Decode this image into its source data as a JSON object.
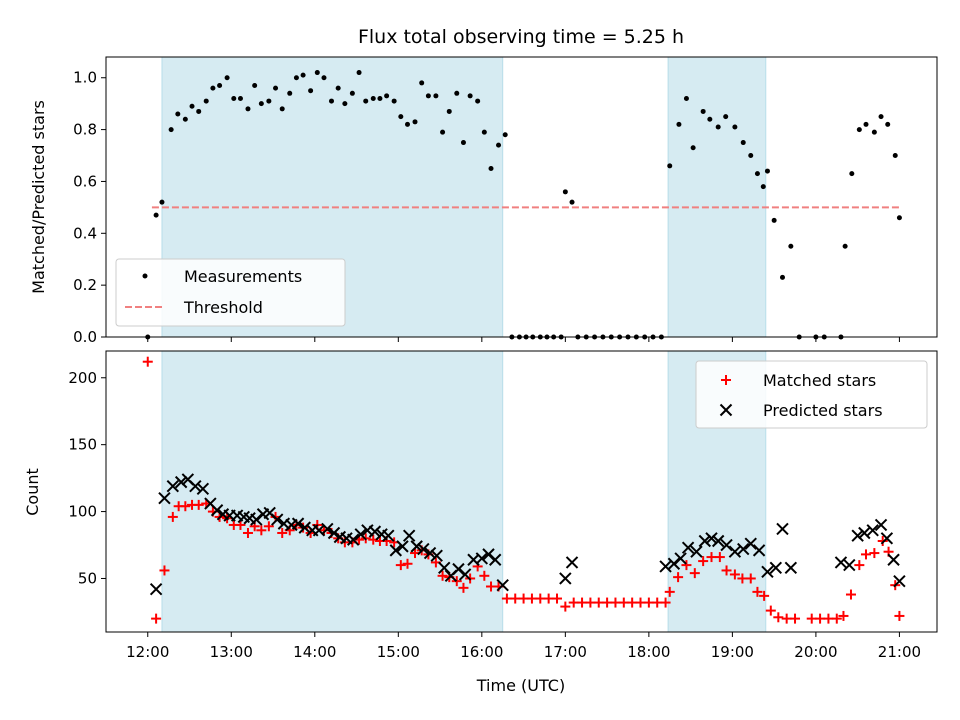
{
  "chart_data": {
    "title": "Flux total observing time = 5.25 h",
    "xlabel": "Time (UTC)",
    "x_ticks": [
      "12:00",
      "13:00",
      "14:00",
      "15:00",
      "16:00",
      "17:00",
      "18:00",
      "19:00",
      "20:00",
      "21:00"
    ],
    "x_range_hours": [
      11.5,
      21.45
    ],
    "shaded_intervals_hours": [
      [
        12.17,
        16.25
      ],
      [
        18.23,
        19.4
      ]
    ],
    "top": {
      "type": "scatter",
      "ylabel": "Matched/Predicted stars",
      "ylim": [
        0,
        1.08
      ],
      "y_ticks": [
        "0.0",
        "0.2",
        "0.4",
        "0.6",
        "0.8",
        "1.0"
      ],
      "legend_position": "lower-left",
      "threshold": {
        "name": "Threshold",
        "value": 0.5,
        "x_range_hours": [
          12.05,
          21.0
        ],
        "color": "#f08080"
      },
      "measurements": {
        "name": "Measurements",
        "color": "#000000",
        "points": [
          [
            12.0,
            0.0
          ],
          [
            12.1,
            0.47
          ],
          [
            12.17,
            0.52
          ],
          [
            12.28,
            0.8
          ],
          [
            12.36,
            0.86
          ],
          [
            12.45,
            0.84
          ],
          [
            12.53,
            0.89
          ],
          [
            12.61,
            0.87
          ],
          [
            12.7,
            0.91
          ],
          [
            12.78,
            0.96
          ],
          [
            12.86,
            0.97
          ],
          [
            12.95,
            1.0
          ],
          [
            13.03,
            0.92
          ],
          [
            13.11,
            0.92
          ],
          [
            13.2,
            0.88
          ],
          [
            13.28,
            0.97
          ],
          [
            13.36,
            0.9
          ],
          [
            13.45,
            0.91
          ],
          [
            13.53,
            0.96
          ],
          [
            13.61,
            0.88
          ],
          [
            13.7,
            0.94
          ],
          [
            13.78,
            1.0
          ],
          [
            13.86,
            1.01
          ],
          [
            13.95,
            0.95
          ],
          [
            14.03,
            1.02
          ],
          [
            14.11,
            1.0
          ],
          [
            14.2,
            0.91
          ],
          [
            14.28,
            0.96
          ],
          [
            14.36,
            0.9
          ],
          [
            14.45,
            0.94
          ],
          [
            14.53,
            1.02
          ],
          [
            14.61,
            0.91
          ],
          [
            14.7,
            0.92
          ],
          [
            14.78,
            0.92
          ],
          [
            14.86,
            0.93
          ],
          [
            14.95,
            0.91
          ],
          [
            15.03,
            0.85
          ],
          [
            15.11,
            0.82
          ],
          [
            15.2,
            0.83
          ],
          [
            15.28,
            0.98
          ],
          [
            15.36,
            0.93
          ],
          [
            15.45,
            0.93
          ],
          [
            15.53,
            0.79
          ],
          [
            15.61,
            0.87
          ],
          [
            15.7,
            0.94
          ],
          [
            15.78,
            0.75
          ],
          [
            15.86,
            0.93
          ],
          [
            15.95,
            0.91
          ],
          [
            16.03,
            0.79
          ],
          [
            16.11,
            0.65
          ],
          [
            16.2,
            0.74
          ],
          [
            16.28,
            0.78
          ],
          [
            16.36,
            0.0
          ],
          [
            16.45,
            0.0
          ],
          [
            16.53,
            0.0
          ],
          [
            16.61,
            0.0
          ],
          [
            16.7,
            0.0
          ],
          [
            16.78,
            0.0
          ],
          [
            16.86,
            0.0
          ],
          [
            16.95,
            0.0
          ],
          [
            17.0,
            0.56
          ],
          [
            17.08,
            0.52
          ],
          [
            17.15,
            0.0
          ],
          [
            17.25,
            0.0
          ],
          [
            17.35,
            0.0
          ],
          [
            17.45,
            0.0
          ],
          [
            17.55,
            0.0
          ],
          [
            17.65,
            0.0
          ],
          [
            17.75,
            0.0
          ],
          [
            17.85,
            0.0
          ],
          [
            17.95,
            0.0
          ],
          [
            18.05,
            0.0
          ],
          [
            18.15,
            0.0
          ],
          [
            18.25,
            0.66
          ],
          [
            18.36,
            0.82
          ],
          [
            18.45,
            0.92
          ],
          [
            18.53,
            0.73
          ],
          [
            18.65,
            0.87
          ],
          [
            18.73,
            0.84
          ],
          [
            18.83,
            0.81
          ],
          [
            18.92,
            0.85
          ],
          [
            19.03,
            0.81
          ],
          [
            19.13,
            0.75
          ],
          [
            19.22,
            0.7
          ],
          [
            19.3,
            0.63
          ],
          [
            19.37,
            0.58
          ],
          [
            19.42,
            0.64
          ],
          [
            19.5,
            0.45
          ],
          [
            19.6,
            0.23
          ],
          [
            19.7,
            0.35
          ],
          [
            19.8,
            0.0
          ],
          [
            20.0,
            0.0
          ],
          [
            20.1,
            0.0
          ],
          [
            20.3,
            0.0
          ],
          [
            20.35,
            0.35
          ],
          [
            20.43,
            0.63
          ],
          [
            20.52,
            0.8
          ],
          [
            20.6,
            0.82
          ],
          [
            20.7,
            0.79
          ],
          [
            20.78,
            0.85
          ],
          [
            20.86,
            0.82
          ],
          [
            20.95,
            0.7
          ],
          [
            21.0,
            0.46
          ]
        ]
      }
    },
    "bottom": {
      "type": "scatter",
      "ylabel": "Count",
      "ylim": [
        10,
        220
      ],
      "y_ticks": [
        "50",
        "100",
        "150",
        "200"
      ],
      "legend_position": "upper-right",
      "matched": {
        "name": "Matched stars",
        "color": "#ff0000",
        "points": [
          [
            12.0,
            212
          ],
          [
            12.1,
            20
          ],
          [
            12.2,
            56
          ],
          [
            12.3,
            96
          ],
          [
            12.37,
            104
          ],
          [
            12.45,
            104
          ],
          [
            12.53,
            105
          ],
          [
            12.61,
            105
          ],
          [
            12.7,
            106
          ],
          [
            12.78,
            100
          ],
          [
            12.86,
            96
          ],
          [
            12.95,
            95
          ],
          [
            13.03,
            90
          ],
          [
            13.11,
            90
          ],
          [
            13.2,
            84
          ],
          [
            13.28,
            89
          ],
          [
            13.36,
            86
          ],
          [
            13.45,
            89
          ],
          [
            13.53,
            96
          ],
          [
            13.61,
            84
          ],
          [
            13.7,
            86
          ],
          [
            13.78,
            90
          ],
          [
            13.86,
            88
          ],
          [
            13.95,
            84
          ],
          [
            14.03,
            90
          ],
          [
            14.11,
            86
          ],
          [
            14.2,
            84
          ],
          [
            14.28,
            80
          ],
          [
            14.36,
            77
          ],
          [
            14.45,
            77
          ],
          [
            14.53,
            79
          ],
          [
            14.61,
            80
          ],
          [
            14.7,
            79
          ],
          [
            14.78,
            78
          ],
          [
            14.86,
            78
          ],
          [
            14.95,
            77
          ],
          [
            15.03,
            60
          ],
          [
            15.11,
            61
          ],
          [
            15.2,
            69
          ],
          [
            15.28,
            71
          ],
          [
            15.36,
            68
          ],
          [
            15.45,
            62
          ],
          [
            15.53,
            52
          ],
          [
            15.61,
            51
          ],
          [
            15.7,
            48
          ],
          [
            15.78,
            43
          ],
          [
            15.86,
            50
          ],
          [
            15.95,
            59
          ],
          [
            16.03,
            52
          ],
          [
            16.11,
            44
          ],
          [
            16.2,
            44
          ],
          [
            16.3,
            35
          ],
          [
            16.4,
            35
          ],
          [
            16.5,
            35
          ],
          [
            16.6,
            35
          ],
          [
            16.7,
            35
          ],
          [
            16.8,
            35
          ],
          [
            16.9,
            35
          ],
          [
            17.0,
            29
          ],
          [
            17.1,
            32
          ],
          [
            17.2,
            32
          ],
          [
            17.3,
            32
          ],
          [
            17.4,
            32
          ],
          [
            17.5,
            32
          ],
          [
            17.6,
            32
          ],
          [
            17.7,
            32
          ],
          [
            17.8,
            32
          ],
          [
            17.9,
            32
          ],
          [
            18.0,
            32
          ],
          [
            18.1,
            32
          ],
          [
            18.2,
            32
          ],
          [
            18.25,
            40
          ],
          [
            18.35,
            51
          ],
          [
            18.45,
            60
          ],
          [
            18.55,
            54
          ],
          [
            18.65,
            63
          ],
          [
            18.75,
            66
          ],
          [
            18.85,
            66
          ],
          [
            18.93,
            56
          ],
          [
            19.03,
            53
          ],
          [
            19.12,
            50
          ],
          [
            19.22,
            50
          ],
          [
            19.3,
            40
          ],
          [
            19.38,
            37
          ],
          [
            19.46,
            26
          ],
          [
            19.55,
            21
          ],
          [
            19.65,
            20
          ],
          [
            19.75,
            20
          ],
          [
            19.95,
            20
          ],
          [
            20.05,
            20
          ],
          [
            20.15,
            20
          ],
          [
            20.25,
            20
          ],
          [
            20.33,
            22
          ],
          [
            20.42,
            38
          ],
          [
            20.52,
            60
          ],
          [
            20.6,
            68
          ],
          [
            20.7,
            69
          ],
          [
            20.8,
            78
          ],
          [
            20.87,
            70
          ],
          [
            20.95,
            45
          ],
          [
            21.0,
            22
          ]
        ]
      },
      "predicted": {
        "name": "Predicted stars",
        "color": "#000000",
        "points": [
          [
            12.1,
            42
          ],
          [
            12.2,
            110
          ],
          [
            12.3,
            119
          ],
          [
            12.4,
            122
          ],
          [
            12.48,
            124
          ],
          [
            12.57,
            119
          ],
          [
            12.66,
            117
          ],
          [
            12.75,
            106
          ],
          [
            12.83,
            101
          ],
          [
            12.9,
            98
          ],
          [
            12.98,
            97
          ],
          [
            13.07,
            97
          ],
          [
            13.15,
            96
          ],
          [
            13.22,
            95
          ],
          [
            13.3,
            94
          ],
          [
            13.38,
            98
          ],
          [
            13.46,
            99
          ],
          [
            13.55,
            94
          ],
          [
            13.63,
            91
          ],
          [
            13.72,
            90
          ],
          [
            13.8,
            91
          ],
          [
            13.88,
            88
          ],
          [
            13.97,
            86
          ],
          [
            14.05,
            86
          ],
          [
            14.15,
            87
          ],
          [
            14.23,
            84
          ],
          [
            14.3,
            81
          ],
          [
            14.38,
            80
          ],
          [
            14.46,
            79
          ],
          [
            14.55,
            83
          ],
          [
            14.63,
            86
          ],
          [
            14.72,
            85
          ],
          [
            14.8,
            83
          ],
          [
            14.88,
            82
          ],
          [
            14.97,
            71
          ],
          [
            15.05,
            74
          ],
          [
            15.13,
            82
          ],
          [
            15.22,
            74
          ],
          [
            15.3,
            72
          ],
          [
            15.38,
            69
          ],
          [
            15.46,
            67
          ],
          [
            15.55,
            58
          ],
          [
            15.63,
            52
          ],
          [
            15.72,
            57
          ],
          [
            15.8,
            53
          ],
          [
            15.9,
            64
          ],
          [
            16.0,
            65
          ],
          [
            16.08,
            68
          ],
          [
            16.16,
            64
          ],
          [
            16.25,
            45
          ],
          [
            17.0,
            50
          ],
          [
            17.08,
            62
          ],
          [
            18.2,
            59
          ],
          [
            18.3,
            61
          ],
          [
            18.38,
            65
          ],
          [
            18.47,
            73
          ],
          [
            18.57,
            70
          ],
          [
            18.67,
            78
          ],
          [
            18.75,
            80
          ],
          [
            18.83,
            78
          ],
          [
            18.93,
            75
          ],
          [
            19.03,
            70
          ],
          [
            19.13,
            72
          ],
          [
            19.22,
            76
          ],
          [
            19.32,
            71
          ],
          [
            19.42,
            55
          ],
          [
            19.52,
            58
          ],
          [
            19.6,
            87
          ],
          [
            19.7,
            58
          ],
          [
            20.3,
            62
          ],
          [
            20.4,
            60
          ],
          [
            20.5,
            82
          ],
          [
            20.58,
            84
          ],
          [
            20.68,
            86
          ],
          [
            20.78,
            90
          ],
          [
            20.85,
            80
          ],
          [
            20.93,
            64
          ],
          [
            21.0,
            48
          ]
        ]
      }
    }
  }
}
